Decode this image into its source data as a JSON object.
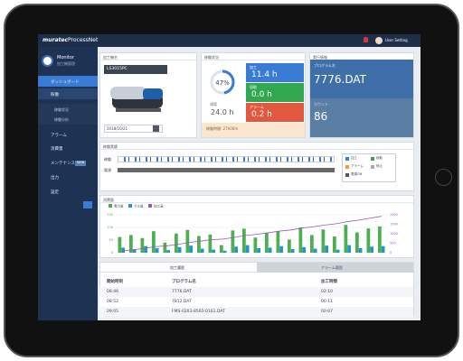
{
  "header": {
    "logo": "muratec",
    "product": "ProcessNet",
    "user": "User Setting"
  },
  "sidebar": {
    "title": "Monitor",
    "subtitle": "加工機管理",
    "menu": [
      "ダッシュボード",
      "稼働",
      "稼働状況",
      "稼働分析",
      "アラーム",
      "消費量",
      "メンテナンス",
      "出力",
      "設定"
    ],
    "badge": "NEW"
  },
  "machine": {
    "heading": "加工機名",
    "model": "LS3015PC",
    "date": "2018/10/21"
  },
  "operation": {
    "heading": "稼働状況",
    "rate": {
      "value": 47,
      "label": "47%"
    },
    "power_label": "通電",
    "power_time": "24.0 h",
    "statuses": [
      {
        "name": "加工",
        "time": "11.4 h"
      },
      {
        "name": "段取",
        "time": "0.0 h"
      },
      {
        "name": "アラーム",
        "time": "0.2 h"
      }
    ],
    "footer": "稼働時間: 27h00m"
  },
  "execution": {
    "heading": "実行情報",
    "program_label": "プログラム名",
    "program": "7776.DAT",
    "count_label": "カウント",
    "count": "86"
  },
  "timeline": {
    "heading": "稼働実績",
    "rows": [
      "稼働",
      "電源"
    ],
    "legend": [
      "加工",
      "段取",
      "アラーム",
      "停止",
      "電源ON"
    ]
  },
  "chart_data": {
    "type": "bar",
    "title": "消費量",
    "series": [
      {
        "name": "電力量",
        "color": "#4caf50",
        "values": [
          62,
          70,
          58,
          85,
          40,
          76,
          90,
          66,
          72,
          30,
          88,
          95,
          60,
          78,
          84,
          52,
          100,
          70,
          92,
          64,
          110,
          80,
          96,
          104
        ]
      },
      {
        "name": "ガス量",
        "color": "#2196c8",
        "values": [
          20,
          14,
          26,
          18,
          10,
          22,
          28,
          16,
          12,
          8,
          24,
          30,
          18,
          20,
          26,
          14,
          22,
          16,
          28,
          12,
          30,
          18,
          24,
          26
        ]
      },
      {
        "name": "加工高",
        "color": "#9b59b6",
        "type": "line",
        "axis": "y2",
        "values": [
          80,
          150,
          230,
          320,
          360,
          440,
          540,
          610,
          690,
          720,
          810,
          910,
          970,
          1050,
          1140,
          1200,
          1300,
          1370,
          1460,
          1530,
          1640,
          1720,
          1820,
          1920
        ]
      }
    ],
    "ylim": [
      0,
      150
    ],
    "yticks": [
      0,
      50,
      100,
      150
    ],
    "y2lim": [
      0,
      2000
    ],
    "y2ticks": [
      0,
      500,
      1000,
      1500,
      2000
    ],
    "grid": true
  },
  "history": {
    "tabs": [
      "加工履歴",
      "アラーム履歴"
    ],
    "columns": [
      "開始時刻",
      "プログラム名",
      "加工時間"
    ],
    "rows": [
      [
        "08:46",
        "7776.DAT",
        "02:10"
      ],
      [
        "08:52",
        "7812.DAT",
        "00:11"
      ],
      [
        "09:05",
        "FMS-0203-8565-0161.DAT",
        "00:07"
      ]
    ]
  }
}
